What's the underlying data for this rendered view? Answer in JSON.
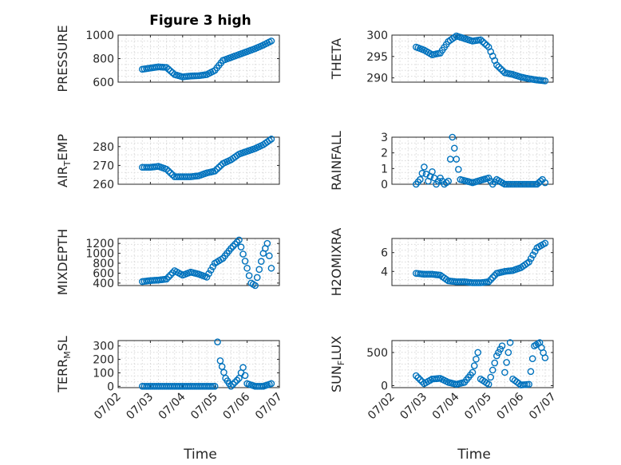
{
  "figure": {
    "title": "Figure 3 high",
    "xlabel": "Time"
  },
  "chart_data": [
    {
      "type": "scatter",
      "name": "pressure",
      "ylabel": "PRESSURE",
      "xlim": [
        "07/02",
        "07/07"
      ],
      "ylim": [
        600,
        1000
      ],
      "yticks": [
        600,
        800,
        1000
      ],
      "xticks": [
        "07/02",
        "07/03",
        "07/04",
        "07/05",
        "07/06",
        "07/07"
      ],
      "x": [
        "07/02 18:00",
        "07/03 00:00",
        "07/03 06:00",
        "07/03 12:00",
        "07/03 18:00",
        "07/04 00:00",
        "07/04 06:00",
        "07/04 12:00",
        "07/04 18:00",
        "07/05 00:00",
        "07/05 06:00",
        "07/05 12:00",
        "07/05 18:00",
        "07/06 00:00",
        "07/06 06:00",
        "07/06 12:00",
        "07/06 18:00"
      ],
      "y": [
        710,
        720,
        730,
        725,
        665,
        645,
        652,
        655,
        665,
        700,
        785,
        810,
        835,
        860,
        885,
        915,
        950
      ],
      "grid": true
    },
    {
      "type": "scatter",
      "name": "theta",
      "ylabel": "THETA",
      "xlim": [
        "07/02",
        "07/07"
      ],
      "ylim": [
        289,
        300
      ],
      "yticks": [
        290,
        295,
        300
      ],
      "xticks": [
        "07/02",
        "07/03",
        "07/04",
        "07/05",
        "07/06",
        "07/07"
      ],
      "x": [
        "07/02 18:00",
        "07/03 00:00",
        "07/03 06:00",
        "07/03 12:00",
        "07/03 18:00",
        "07/04 00:00",
        "07/04 06:00",
        "07/04 12:00",
        "07/04 18:00",
        "07/05 00:00",
        "07/05 06:00",
        "07/05 12:00",
        "07/05 18:00",
        "07/06 00:00",
        "07/06 06:00",
        "07/06 12:00",
        "07/06 18:00"
      ],
      "y": [
        297.2,
        296.5,
        295.4,
        295.8,
        298.5,
        299.8,
        299.2,
        298.6,
        298.9,
        297.2,
        293.0,
        291.2,
        290.8,
        290.2,
        289.8,
        289.5,
        289.3
      ],
      "grid": true
    },
    {
      "type": "scatter",
      "name": "air_temp",
      "ylabel": "AIR_TEMP",
      "xlim": [
        "07/02",
        "07/07"
      ],
      "ylim": [
        260,
        285
      ],
      "yticks": [
        260,
        270,
        280
      ],
      "xticks": [
        "07/02",
        "07/03",
        "07/04",
        "07/05",
        "07/06",
        "07/07"
      ],
      "x": [
        "07/02 18:00",
        "07/03 00:00",
        "07/03 06:00",
        "07/03 12:00",
        "07/03 18:00",
        "07/04 00:00",
        "07/04 06:00",
        "07/04 12:00",
        "07/04 18:00",
        "07/05 00:00",
        "07/05 06:00",
        "07/05 12:00",
        "07/05 18:00",
        "07/06 00:00",
        "07/06 06:00",
        "07/06 12:00",
        "07/06 18:00"
      ],
      "y": [
        269,
        269,
        269.5,
        268,
        264,
        264,
        264,
        264.5,
        266,
        267,
        271,
        273,
        276,
        277.5,
        279,
        281,
        284
      ],
      "grid": true
    },
    {
      "type": "scatter",
      "name": "rainfall",
      "ylabel": "RAINFALL",
      "xlim": [
        "07/02",
        "07/07"
      ],
      "ylim": [
        0,
        3
      ],
      "yticks": [
        0,
        1,
        2,
        3
      ],
      "xticks": [
        "07/02",
        "07/03",
        "07/04",
        "07/05",
        "07/06",
        "07/07"
      ],
      "x": [
        "07/02 18:00",
        "07/02 21:00",
        "07/03 00:00",
        "07/03 03:00",
        "07/03 06:00",
        "07/03 09:00",
        "07/03 12:00",
        "07/03 15:00",
        "07/03 18:00",
        "07/03 21:00",
        "07/04 00:00",
        "07/04 03:00",
        "07/04 12:00",
        "07/05 00:00",
        "07/05 03:00",
        "07/05 06:00",
        "07/05 12:00",
        "07/06 00:00",
        "07/06 12:00",
        "07/06 16:00",
        "07/06 18:00"
      ],
      "y": [
        0,
        0.3,
        1.1,
        0.2,
        0.8,
        0,
        0.4,
        0,
        0.2,
        3.0,
        1.6,
        0.3,
        0.1,
        0.4,
        0,
        0.3,
        0,
        0,
        0,
        0.3,
        0.1
      ],
      "grid": true
    },
    {
      "type": "scatter",
      "name": "mixdepth",
      "ylabel": "MIXDEPTH",
      "xlim": [
        "07/02",
        "07/07"
      ],
      "ylim": [
        350,
        1300
      ],
      "yticks": [
        400,
        600,
        800,
        1000,
        1200
      ],
      "xticks": [
        "07/02",
        "07/03",
        "07/04",
        "07/05",
        "07/06",
        "07/07"
      ],
      "x": [
        "07/02 18:00",
        "07/03 00:00",
        "07/03 06:00",
        "07/03 12:00",
        "07/03 18:00",
        "07/04 00:00",
        "07/04 06:00",
        "07/04 12:00",
        "07/04 18:00",
        "07/05 00:00",
        "07/05 06:00",
        "07/05 12:00",
        "07/05 18:00",
        "07/06 00:00",
        "07/06 03:00",
        "07/06 06:00",
        "07/06 12:00",
        "07/06 15:00",
        "07/06 18:00"
      ],
      "y": [
        430,
        450,
        460,
        480,
        650,
        560,
        620,
        580,
        520,
        800,
        900,
        1100,
        1270,
        700,
        400,
        350,
        1000,
        1200,
        700
      ],
      "grid": true
    },
    {
      "type": "scatter",
      "name": "h2omixra",
      "ylabel": "H2OMIXRA",
      "xlim": [
        "07/02",
        "07/07"
      ],
      "ylim": [
        2.5,
        7.5
      ],
      "yticks": [
        4,
        6
      ],
      "xticks": [
        "07/02",
        "07/03",
        "07/04",
        "07/05",
        "07/06",
        "07/07"
      ],
      "x": [
        "07/02 18:00",
        "07/03 00:00",
        "07/03 06:00",
        "07/03 12:00",
        "07/03 18:00",
        "07/04 00:00",
        "07/04 06:00",
        "07/04 12:00",
        "07/04 18:00",
        "07/05 00:00",
        "07/05 06:00",
        "07/05 12:00",
        "07/05 18:00",
        "07/06 00:00",
        "07/06 06:00",
        "07/06 12:00",
        "07/06 18:00"
      ],
      "y": [
        3.8,
        3.7,
        3.7,
        3.6,
        3.0,
        2.9,
        2.9,
        2.8,
        2.8,
        2.9,
        3.8,
        4.0,
        4.1,
        4.4,
        5.0,
        6.5,
        7.0
      ],
      "grid": true
    },
    {
      "type": "scatter",
      "name": "terr_msl",
      "ylabel": "TERR_MSL",
      "xlim": [
        "07/02",
        "07/07"
      ],
      "ylim": [
        -10,
        340
      ],
      "yticks": [
        0,
        100,
        200,
        300
      ],
      "xticks": [
        "07/02",
        "07/03",
        "07/04",
        "07/05",
        "07/06",
        "07/07"
      ],
      "xticklabels_rotated": true,
      "x": [
        "07/02 18:00",
        "07/03 00:00",
        "07/03 06:00",
        "07/03 12:00",
        "07/03 18:00",
        "07/04 00:00",
        "07/04 06:00",
        "07/04 12:00",
        "07/04 18:00",
        "07/05 00:00",
        "07/05 02:00",
        "07/05 04:00",
        "07/05 08:00",
        "07/05 12:00",
        "07/05 18:00",
        "07/05 21:00",
        "07/06 00:00",
        "07/06 06:00",
        "07/06 12:00",
        "07/06 18:00"
      ],
      "y": [
        0,
        0,
        0,
        0,
        0,
        0,
        0,
        0,
        0,
        0,
        330,
        190,
        60,
        0,
        60,
        140,
        20,
        0,
        0,
        20
      ],
      "grid": true
    },
    {
      "type": "scatter",
      "name": "sun_flux",
      "ylabel": "SUN_FLUX",
      "xlim": [
        "07/02",
        "07/07"
      ],
      "ylim": [
        -30,
        680
      ],
      "yticks": [
        0,
        500
      ],
      "xticks": [
        "07/02",
        "07/03",
        "07/04",
        "07/05",
        "07/06",
        "07/07"
      ],
      "xticklabels_rotated": true,
      "x": [
        "07/02 18:00",
        "07/03 00:00",
        "07/03 06:00",
        "07/03 12:00",
        "07/03 18:00",
        "07/04 00:00",
        "07/04 06:00",
        "07/04 12:00",
        "07/04 16:00",
        "07/04 18:00",
        "07/05 00:00",
        "07/05 06:00",
        "07/05 10:00",
        "07/05 12:00",
        "07/05 16:00",
        "07/05 18:00",
        "07/06 00:00",
        "07/06 06:00",
        "07/06 10:00",
        "07/06 14:00",
        "07/06 18:00"
      ],
      "y": [
        150,
        30,
        100,
        110,
        50,
        20,
        50,
        200,
        500,
        100,
        20,
        450,
        600,
        200,
        650,
        100,
        10,
        20,
        600,
        650,
        420
      ],
      "grid": true
    }
  ]
}
